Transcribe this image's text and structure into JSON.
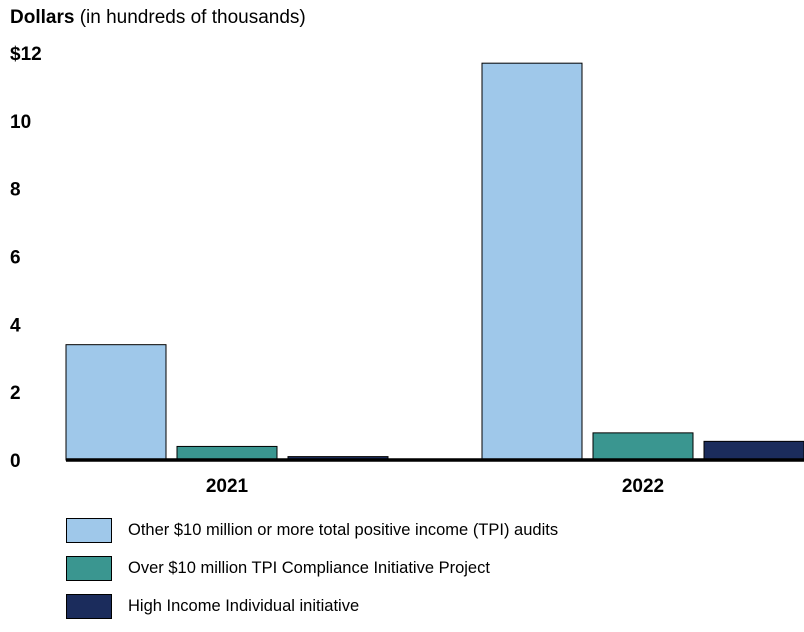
{
  "y_title": {
    "bold": "Dollars",
    "rest": "(in hundreds of thousands)"
  },
  "chart_data": {
    "type": "bar",
    "categories": [
      "2021",
      "2022"
    ],
    "series": [
      {
        "name": "Other $10 million or more total positive income (TPI) audits",
        "color": "#9fc8ea",
        "values": [
          3.4,
          11.7
        ]
      },
      {
        "name": "Over $10 million TPI Compliance Initiative Project",
        "color": "#3a9690",
        "values": [
          0.4,
          0.8
        ]
      },
      {
        "name": "High Income Individual initiative",
        "color": "#1b2c5c",
        "values": [
          0.1,
          0.55
        ]
      }
    ],
    "ylim": [
      0,
      12
    ],
    "yticks": [
      0,
      2,
      4,
      6,
      8,
      10,
      12
    ],
    "ytick_labels": [
      "0",
      "2",
      "4",
      "6",
      "8",
      "10",
      "$12"
    ],
    "grid": false,
    "legend": "bottom"
  }
}
